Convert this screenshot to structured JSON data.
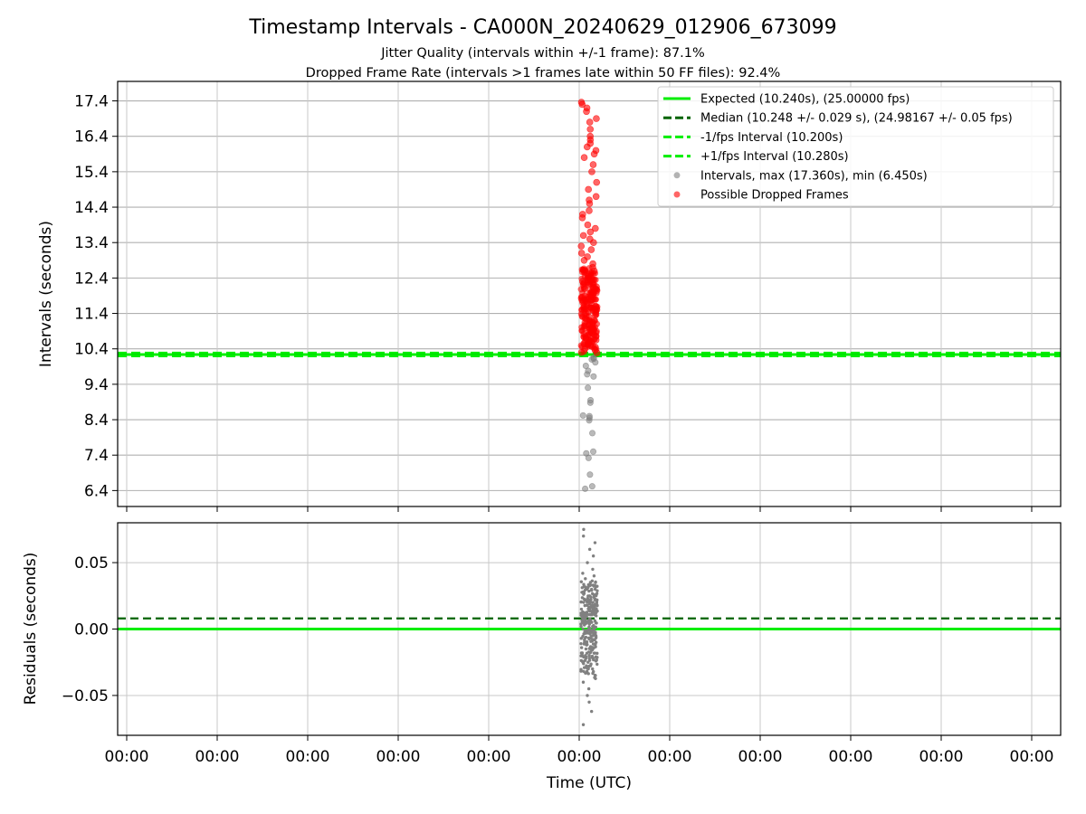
{
  "figure": {
    "title": "Timestamp Intervals - CA000N_20240629_012906_673099",
    "subtitle_1": "Jitter Quality (intervals within +/-1 frame): 87.1%",
    "subtitle_2": "Dropped Frame Rate (intervals >1 frames late within 50 FF files): 92.4%"
  },
  "chart_data": [
    {
      "type": "scatter",
      "panel": "intervals",
      "ylabel": "Intervals (seconds)",
      "ylim": [
        5.95,
        17.95
      ],
      "yticks": [
        6.4,
        7.4,
        8.4,
        9.4,
        10.4,
        11.4,
        12.4,
        13.4,
        14.4,
        15.4,
        16.4,
        17.4
      ],
      "ytick_labels": [
        "6.4",
        "7.4",
        "8.4",
        "9.4",
        "10.4",
        "11.4",
        "12.4",
        "13.4",
        "14.4",
        "15.4",
        "16.4",
        "17.4"
      ],
      "grid": true,
      "legend_position": "upper-right",
      "reference_lines": [
        {
          "label": "Expected (10.240s), (25.00000 fps)",
          "y": 10.24,
          "style": "solid",
          "color": "#00ee00"
        },
        {
          "label": "Median (10.248 +/- 0.029 s), (24.98167 +/- 0.05 fps)",
          "y": 10.248,
          "style": "dashed",
          "color": "#006400"
        },
        {
          "label": "-1/fps Interval (10.200s)",
          "y": 10.2,
          "style": "dashed",
          "color": "#00ee00"
        },
        {
          "label": "+1/fps Interval (10.280s)",
          "y": 10.28,
          "style": "dashed",
          "color": "#00ee00"
        }
      ],
      "series": [
        {
          "name": "Intervals, max (17.360s), min (6.450s)",
          "color": "#808080",
          "y": [
            6.45,
            6.52,
            6.85,
            7.32,
            7.45,
            7.5,
            8.02,
            8.38,
            8.45,
            8.5,
            8.52,
            8.88,
            8.95,
            9.3,
            9.62,
            9.68,
            9.78,
            9.92,
            10.02,
            10.1,
            10.12,
            10.15
          ]
        },
        {
          "name": "Possible Dropped Frames",
          "color": "#ff0000",
          "y": [
            17.36,
            17.3,
            17.2,
            17.1,
            16.9,
            16.8,
            16.6,
            16.4,
            16.3,
            16.2,
            16.1,
            16.0,
            15.9,
            15.8,
            15.6,
            15.4,
            15.1,
            14.9,
            14.7,
            14.6,
            14.5,
            14.3,
            14.2,
            14.1,
            13.9,
            13.8,
            13.7,
            13.6,
            13.5,
            13.4,
            13.3,
            13.2,
            13.1,
            13.0,
            12.9,
            12.8,
            12.7,
            12.6,
            12.5,
            12.45,
            12.4,
            12.35,
            12.3,
            12.25,
            12.2,
            12.15,
            12.1,
            12.05,
            12.0,
            11.95,
            11.9,
            11.85,
            11.8,
            11.75,
            11.7,
            11.65,
            11.6,
            11.55,
            11.5,
            11.45,
            11.4,
            11.35,
            11.3,
            11.25,
            11.2,
            11.15,
            11.1,
            11.05,
            11.0,
            10.95,
            10.9,
            10.85,
            10.8,
            10.75,
            10.7,
            10.65,
            10.6,
            10.55,
            10.5,
            10.45,
            10.4,
            10.36,
            10.33,
            10.3,
            10.29
          ]
        }
      ]
    },
    {
      "type": "scatter",
      "panel": "residuals",
      "ylabel": "Residuals (seconds)",
      "xlabel": "Time (UTC)",
      "ylim": [
        -0.08,
        0.08
      ],
      "yticks": [
        -0.05,
        0.0,
        0.05
      ],
      "ytick_labels": [
        "−0.05",
        "0.00",
        "0.05"
      ],
      "xtick_labels": [
        "00:00",
        "00:00",
        "00:00",
        "00:00",
        "00:00",
        "00:00",
        "00:00",
        "00:00",
        "00:00",
        "00:00",
        "00:00"
      ],
      "grid": true,
      "reference_lines": [
        {
          "y": 0.0,
          "style": "solid",
          "color": "#00ee00"
        },
        {
          "y": 0.008,
          "style": "dashed",
          "color": "#006400"
        }
      ],
      "series": [
        {
          "color": "#808080",
          "y": [
            0.075,
            0.07,
            0.065,
            0.06,
            0.055,
            0.05,
            0.045,
            0.042,
            0.04,
            0.035,
            0.032,
            0.03,
            0.028,
            0.025,
            0.022,
            0.02,
            0.018,
            0.015,
            0.012,
            0.01,
            0.008,
            0.005,
            0.003,
            0.0,
            -0.002,
            -0.005,
            -0.008,
            -0.01,
            -0.012,
            -0.015,
            -0.018,
            -0.02,
            -0.022,
            -0.025,
            -0.028,
            -0.03,
            -0.033,
            -0.035,
            -0.04,
            -0.045,
            -0.05,
            -0.055,
            -0.062,
            -0.072
          ]
        }
      ]
    }
  ]
}
